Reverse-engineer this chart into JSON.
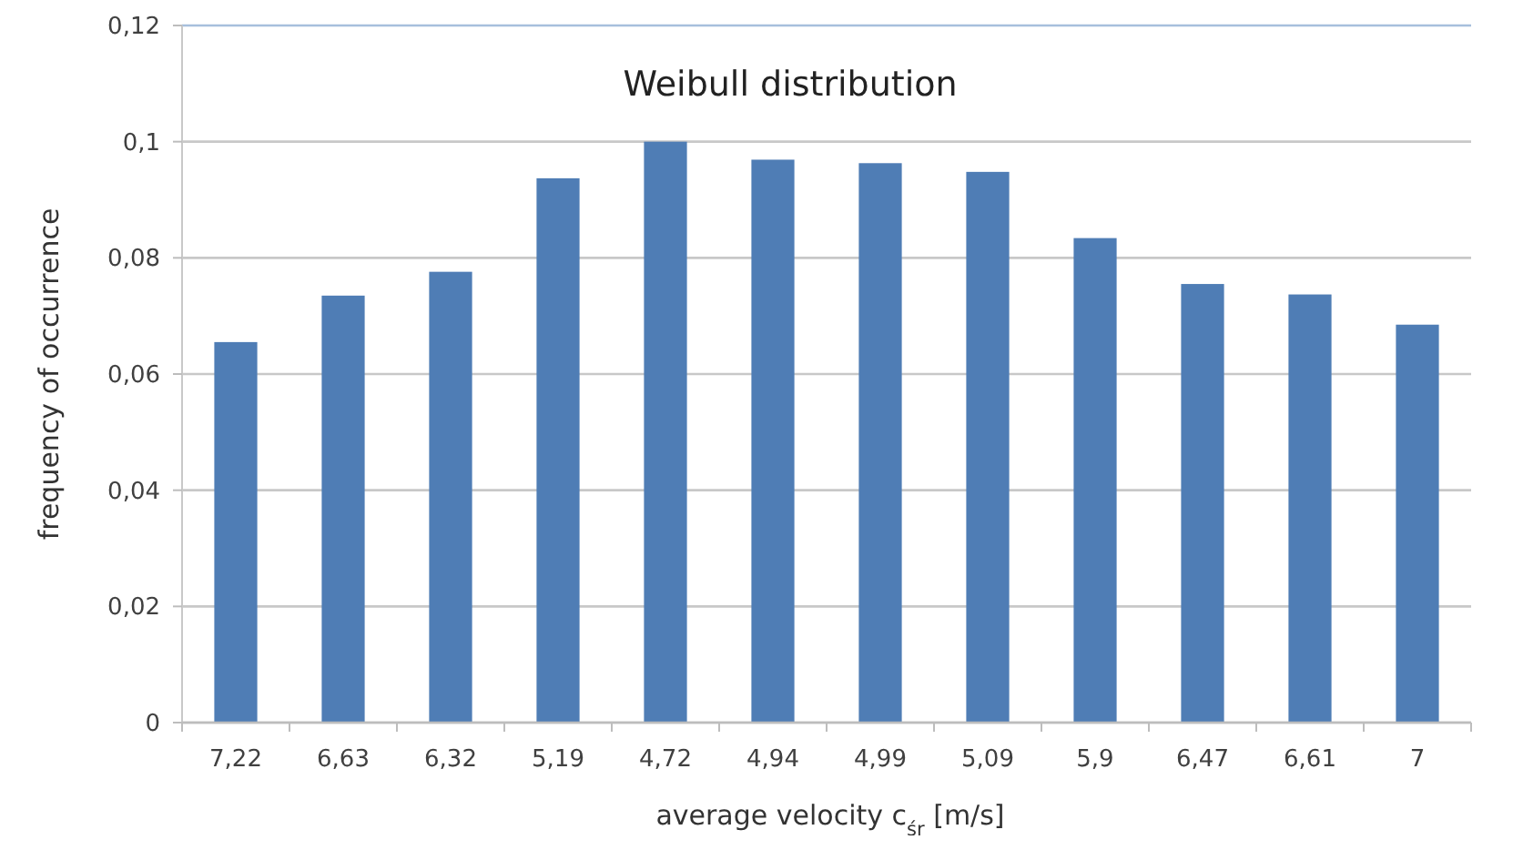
{
  "chart_data": {
    "type": "bar",
    "title": "Weibull distribution",
    "xlabel": "average velocity  c$_{śr}$ [m/s]",
    "ylabel": "frequency of occurrence",
    "categories": [
      "7,22",
      "6,63",
      "6,32",
      "5,19",
      "4,72",
      "4,94",
      "4,99",
      "5,09",
      "5,9",
      "6,47",
      "6,61",
      "7"
    ],
    "values": [
      0.0655,
      0.0735,
      0.0776,
      0.0937,
      0.1,
      0.0969,
      0.0963,
      0.0948,
      0.0834,
      0.0755,
      0.0737,
      0.0685
    ],
    "color": "#4f7db5",
    "ylim": [
      0,
      0.12
    ],
    "yticks": [
      0,
      {
        "value": 0.02,
        "label": "0,02"
      },
      {
        "value": 0.04,
        "label": "0,04"
      },
      {
        "value": 0.06,
        "label": "0,06"
      },
      {
        "value": 0.08,
        "label": "0,08"
      },
      {
        "value": 0.1,
        "label": "0,1"
      },
      {
        "value": 0.12,
        "label": "0,12"
      }
    ],
    "grid": "y"
  }
}
